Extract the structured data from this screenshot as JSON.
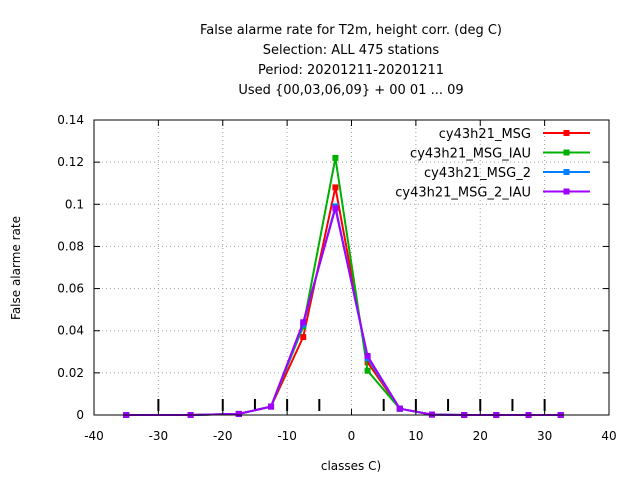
{
  "chart_data": {
    "type": "line",
    "title_lines": [
      "False alarme rate  for T2m, height corr. (deg C)",
      "Selection: ALL    475 stations",
      "Period: 20201211-20201211",
      "Used {00,03,06,09} + 00 01 ... 09"
    ],
    "xlabel": "classes C)",
    "ylabel": "False alarme rate",
    "xlim": [
      -40,
      40
    ],
    "ylim": [
      0,
      0.14
    ],
    "xticks": [
      -40,
      -30,
      -20,
      -10,
      0,
      10,
      20,
      30,
      40
    ],
    "yticks": [
      0,
      0.02,
      0.04,
      0.06,
      0.08,
      0.1,
      0.12,
      0.14
    ],
    "grid": true,
    "legend_position": "top-right",
    "class_markers": [
      -30,
      -20,
      -15,
      -10,
      -5,
      5,
      10,
      15,
      20,
      25,
      30
    ],
    "series": [
      {
        "name": "cy43h21_MSG",
        "color": "#ff0000",
        "x": [
          -35,
          -25,
          -17.5,
          -12.5,
          -7.5,
          -2.5,
          2.5,
          7.5,
          12.5,
          17.5,
          22.5,
          27.5,
          32.5
        ],
        "y": [
          0,
          0,
          0.0005,
          0.004,
          0.037,
          0.108,
          0.025,
          0.003,
          0.0002,
          0,
          0,
          0,
          0
        ]
      },
      {
        "name": "cy43h21_MSG_IAU",
        "color": "#00b000",
        "x": [
          -35,
          -25,
          -17.5,
          -12.5,
          -7.5,
          -2.5,
          2.5,
          7.5,
          12.5,
          17.5,
          22.5,
          27.5,
          32.5
        ],
        "y": [
          0,
          0,
          0.0005,
          0.004,
          0.042,
          0.122,
          0.021,
          0.003,
          0.0002,
          0,
          0,
          0,
          0
        ]
      },
      {
        "name": "cy43h21_MSG_2",
        "color": "#0080ff",
        "x": [
          -35,
          -25,
          -17.5,
          -12.5,
          -7.5,
          -2.5,
          2.5,
          7.5,
          12.5,
          17.5,
          22.5,
          27.5,
          32.5
        ],
        "y": [
          0,
          0,
          0.0005,
          0.004,
          0.043,
          0.099,
          0.027,
          0.003,
          0.0002,
          0,
          0,
          0,
          0
        ]
      },
      {
        "name": "cy43h21_MSG_2_IAU",
        "color": "#a000ff",
        "x": [
          -35,
          -25,
          -17.5,
          -12.5,
          -7.5,
          -2.5,
          2.5,
          7.5,
          12.5,
          17.5,
          22.5,
          27.5,
          32.5
        ],
        "y": [
          0,
          0,
          0.0005,
          0.004,
          0.044,
          0.098,
          0.028,
          0.003,
          0.0002,
          0,
          0,
          0,
          0
        ]
      }
    ]
  }
}
